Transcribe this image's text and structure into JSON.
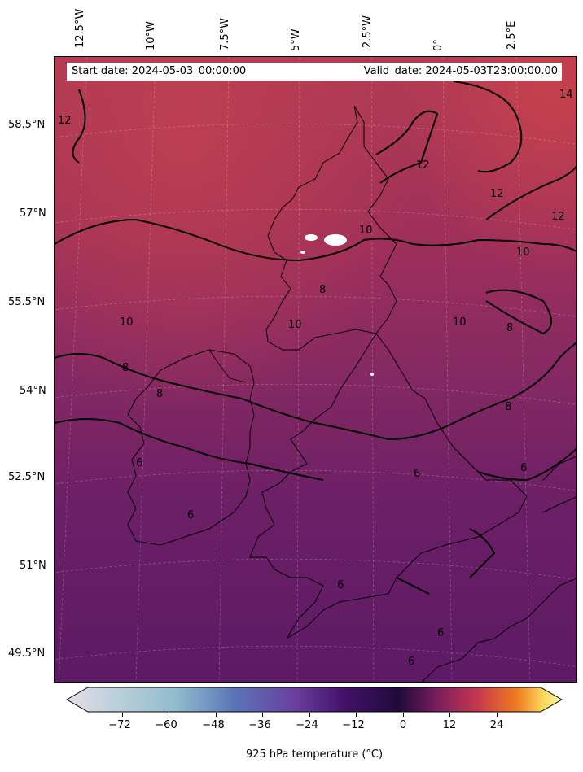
{
  "header": {
    "start_date": "Start date: 2024-05-03_00:00:00",
    "valid_date": "Valid_date: 2024-05-03T23:00:00.00"
  },
  "map": {
    "longitude_labels": [
      "12.5°W",
      "10°W",
      "7.5°W",
      "5°W",
      "2.5°W",
      "0°",
      "2.5°E"
    ],
    "latitude_labels": [
      "58.5°N",
      "57°N",
      "55.5°N",
      "54°N",
      "52.5°N",
      "51°N",
      "49.5°N"
    ],
    "contour_labels": [
      "12",
      "12",
      "12",
      "12",
      "14",
      "10",
      "10",
      "10",
      "10",
      "10",
      "8",
      "8",
      "8",
      "8",
      "6",
      "6",
      "6",
      "6",
      "6",
      "6",
      "8",
      "6"
    ],
    "field": "925 hPa temperature",
    "colors": {
      "warm": "#b5384f",
      "mid": "#8a2a64",
      "cool": "#5c1a66",
      "contour": "#000000"
    }
  },
  "colorbar": {
    "title": "925 hPa temperature (°C)",
    "ticks": [
      "−72",
      "−60",
      "−48",
      "−36",
      "−24",
      "−12",
      "0",
      "12",
      "24"
    ],
    "colormap_stops": [
      "#e6dde6",
      "#92bccd",
      "#5a74b8",
      "#6a3fa0",
      "#43126a",
      "#1f0a3a",
      "#7b1e5e",
      "#c8374d",
      "#f17b1f",
      "#fbe07a",
      "#f8fba2"
    ]
  }
}
